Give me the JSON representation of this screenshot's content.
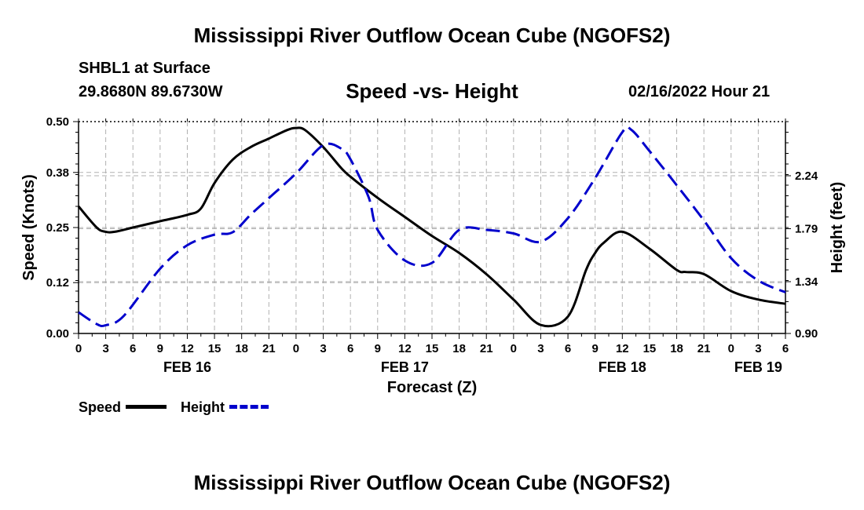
{
  "header": {
    "title": "Mississippi River Outflow Ocean Cube (NGOFS2)",
    "station": "SHBL1 at Surface",
    "coords": "29.8680N  89.6730W",
    "chart_title": "Speed -vs- Height",
    "timestamp": "02/16/2022 Hour 21"
  },
  "footer": {
    "title": "Mississippi River Outflow Ocean Cube (NGOFS2)"
  },
  "legend": {
    "speed_label": "Speed",
    "height_label": "Height"
  },
  "chart_data": {
    "type": "line",
    "title": "Speed -vs- Height",
    "xlabel": "Forecast (Z)",
    "ylabel": "Speed (Knots)",
    "y2label": "Height (feet)",
    "xlim": [
      0,
      78
    ],
    "ylim": [
      0,
      0.5
    ],
    "y2lim": [
      0.9,
      2.7
    ],
    "grid": true,
    "x_ticks": [
      0,
      3,
      6,
      9,
      12,
      15,
      18,
      21,
      24,
      27,
      30,
      33,
      36,
      39,
      42,
      45,
      48,
      51,
      54,
      57,
      60,
      63,
      66,
      69,
      72,
      75,
      78
    ],
    "x_tick_labels": [
      "0",
      "3",
      "6",
      "9",
      "12",
      "15",
      "18",
      "21",
      "0",
      "3",
      "6",
      "9",
      "12",
      "15",
      "18",
      "21",
      "0",
      "3",
      "6",
      "9",
      "12",
      "15",
      "18",
      "21",
      "0",
      "3",
      "6"
    ],
    "date_labels": [
      {
        "x": 12,
        "label": "FEB 16"
      },
      {
        "x": 36,
        "label": "FEB 17"
      },
      {
        "x": 60,
        "label": "FEB 18"
      },
      {
        "x": 75,
        "label": "FEB 19"
      }
    ],
    "y_ticks": [
      0.0,
      0.12,
      0.25,
      0.38,
      0.5
    ],
    "y_tick_labels": [
      "0.00",
      "0.12",
      "0.25",
      "0.38",
      "0.50"
    ],
    "y2_ticks": [
      0.9,
      1.34,
      1.79,
      2.24
    ],
    "y2_tick_labels": [
      "0.90",
      "1.34",
      "1.79",
      "2.24"
    ],
    "series": [
      {
        "name": "Speed",
        "axis": "left",
        "color": "#000000",
        "dash": "solid",
        "x": [
          0,
          2,
          3,
          4,
          6,
          9,
          12,
          13.5,
          15,
          17,
          19,
          21,
          23,
          24,
          25,
          27,
          29,
          30,
          33,
          36,
          39,
          42,
          45,
          48,
          51,
          54,
          56,
          57,
          58,
          60,
          63,
          66,
          67,
          69,
          72,
          75,
          78
        ],
        "values": [
          0.3,
          0.25,
          0.24,
          0.24,
          0.25,
          0.265,
          0.28,
          0.295,
          0.355,
          0.41,
          0.44,
          0.46,
          0.48,
          0.485,
          0.48,
          0.44,
          0.39,
          0.37,
          0.32,
          0.275,
          0.23,
          0.19,
          0.14,
          0.08,
          0.02,
          0.04,
          0.15,
          0.19,
          0.215,
          0.24,
          0.2,
          0.15,
          0.145,
          0.14,
          0.1,
          0.08,
          0.07
        ]
      },
      {
        "name": "Height",
        "axis": "right",
        "color": "#0000cc",
        "dash": "dashed",
        "x": [
          0,
          2,
          3,
          5,
          9,
          12,
          15,
          17,
          19,
          21,
          24,
          27,
          29,
          30,
          32,
          33,
          36,
          39,
          42,
          45,
          48,
          51,
          54,
          57,
          60,
          61,
          63,
          66,
          69,
          72,
          75,
          78
        ],
        "values": [
          1.08,
          0.98,
          0.97,
          1.05,
          1.45,
          1.65,
          1.74,
          1.76,
          1.91,
          2.05,
          2.26,
          2.5,
          2.47,
          2.38,
          2.06,
          1.78,
          1.52,
          1.5,
          1.78,
          1.78,
          1.75,
          1.68,
          1.88,
          2.22,
          2.61,
          2.63,
          2.45,
          2.16,
          1.86,
          1.54,
          1.35,
          1.25
        ]
      }
    ]
  }
}
